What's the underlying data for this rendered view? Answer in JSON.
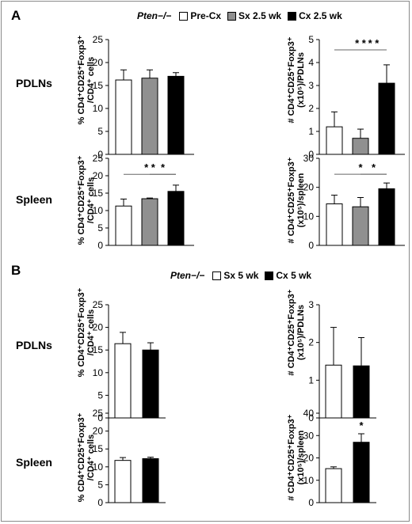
{
  "figure": {
    "panels": [
      {
        "label": "A",
        "legend": {
          "genotype": "Pten−/−",
          "items": [
            {
              "label": "Pre-Cx",
              "color": "#ffffff"
            },
            {
              "label": "Sx 2.5 wk",
              "color": "#909090"
            },
            {
              "label": "Cx 2.5 wk",
              "color": "#000000"
            }
          ]
        },
        "rows": [
          {
            "label": "PDLNs"
          },
          {
            "label": "Spleen"
          }
        ]
      },
      {
        "label": "B",
        "legend": {
          "genotype": "Pten−/−",
          "items": [
            {
              "label": "Sx 5 wk",
              "color": "#ffffff"
            },
            {
              "label": "Cx 5 wk",
              "color": "#000000"
            }
          ]
        },
        "rows": [
          {
            "label": "PDLNs"
          },
          {
            "label": "Spleen"
          }
        ]
      }
    ],
    "ylabels": {
      "pct_l1": "% CD4⁺CD25⁺Foxp3⁺",
      "pct_l2": "/CD4⁺ cells",
      "abs_l1": "# CD4⁺CD25⁺Foxp3⁺",
      "abs_pdln_l2": "(x10⁵)/PDLNs",
      "abs_spleen_l2": "(x10⁵)/spleen"
    }
  },
  "chart_data": [
    {
      "type": "bar",
      "panel": "A",
      "row": "PDLNs",
      "measure": "percent",
      "categories": [
        "Pre-Cx",
        "Sx 2.5 wk",
        "Cx 2.5 wk"
      ],
      "values": [
        16.2,
        16.6,
        17.0
      ],
      "errors": [
        2.2,
        1.8,
        0.8
      ],
      "colors": [
        "#ffffff",
        "#909090",
        "#000000"
      ],
      "ylim": [
        0,
        25
      ],
      "yticks": [
        0,
        5,
        10,
        15,
        20,
        25
      ],
      "significance": []
    },
    {
      "type": "bar",
      "panel": "A",
      "row": "PDLNs",
      "measure": "count",
      "categories": [
        "Pre-Cx",
        "Sx 2.5 wk",
        "Cx 2.5 wk"
      ],
      "values": [
        1.2,
        0.7,
        3.1
      ],
      "errors": [
        0.65,
        0.4,
        0.8
      ],
      "colors": [
        "#ffffff",
        "#909090",
        "#000000"
      ],
      "ylim": [
        0,
        5
      ],
      "yticks": [
        0,
        1,
        2,
        3,
        4,
        5
      ],
      "significance": [
        {
          "from": 0,
          "to": 2,
          "label": "* *",
          "y": 4.55
        },
        {
          "from": 1,
          "to": 2,
          "label": "* *",
          "y": 4.55
        }
      ]
    },
    {
      "type": "bar",
      "panel": "A",
      "row": "Spleen",
      "measure": "percent",
      "categories": [
        "Pre-Cx",
        "Sx 2.5 wk",
        "Cx 2.5 wk"
      ],
      "values": [
        11.3,
        13.4,
        15.5
      ],
      "errors": [
        2.0,
        0.2,
        1.8
      ],
      "colors": [
        "#ffffff",
        "#909090",
        "#000000"
      ],
      "ylim": [
        0,
        25
      ],
      "yticks": [
        0,
        5,
        10,
        15,
        20,
        25
      ],
      "significance": [
        {
          "from": 0,
          "to": 2,
          "label": "* *",
          "y": 20.4
        },
        {
          "from": 1,
          "to": 2,
          "label": "*",
          "y": 20.4
        }
      ]
    },
    {
      "type": "bar",
      "panel": "A",
      "row": "Spleen",
      "measure": "count",
      "categories": [
        "Pre-Cx",
        "Sx 2.5 wk",
        "Cx 2.5 wk"
      ],
      "values": [
        14.3,
        13.3,
        19.5
      ],
      "errors": [
        3.0,
        3.2,
        2.0
      ],
      "colors": [
        "#ffffff",
        "#909090",
        "#000000"
      ],
      "ylim": [
        0,
        30
      ],
      "yticks": [
        0,
        10,
        20,
        30
      ],
      "significance": [
        {
          "from": 0,
          "to": 2,
          "label": "*",
          "y": 24.5
        },
        {
          "from": 1,
          "to": 2,
          "label": "*",
          "y": 24.5
        }
      ]
    },
    {
      "type": "bar",
      "panel": "B",
      "row": "PDLNs",
      "measure": "percent",
      "categories": [
        "Sx 5 wk",
        "Cx 5 wk"
      ],
      "values": [
        16.4,
        15.0
      ],
      "errors": [
        2.5,
        1.6
      ],
      "colors": [
        "#ffffff",
        "#000000"
      ],
      "ylim": [
        0,
        25
      ],
      "yticks": [
        0,
        5,
        10,
        15,
        20,
        25
      ],
      "significance": []
    },
    {
      "type": "bar",
      "panel": "B",
      "row": "PDLNs",
      "measure": "count",
      "categories": [
        "Sx 5 wk",
        "Cx 5 wk"
      ],
      "values": [
        1.4,
        1.38
      ],
      "errors": [
        1.0,
        0.75
      ],
      "colors": [
        "#ffffff",
        "#000000"
      ],
      "ylim": [
        0,
        3
      ],
      "yticks": [
        0,
        1,
        2,
        3
      ],
      "significance": []
    },
    {
      "type": "bar",
      "panel": "B",
      "row": "Spleen",
      "measure": "percent",
      "categories": [
        "Sx 5 wk",
        "Cx 5 wk"
      ],
      "values": [
        11.8,
        12.3
      ],
      "errors": [
        0.8,
        0.4
      ],
      "colors": [
        "#ffffff",
        "#000000"
      ],
      "ylim": [
        0,
        25
      ],
      "yticks": [
        0,
        5,
        10,
        15,
        20,
        25
      ],
      "significance": []
    },
    {
      "type": "bar",
      "panel": "B",
      "row": "Spleen",
      "measure": "count",
      "categories": [
        "Sx 5 wk",
        "Cx 5 wk"
      ],
      "values": [
        15.2,
        27.0
      ],
      "errors": [
        0.8,
        3.8
      ],
      "colors": [
        "#ffffff",
        "#000000"
      ],
      "ylim": [
        0,
        40
      ],
      "yticks": [
        0,
        10,
        20,
        30,
        40
      ],
      "significance": [
        {
          "over": 1,
          "label": "*"
        }
      ]
    }
  ]
}
